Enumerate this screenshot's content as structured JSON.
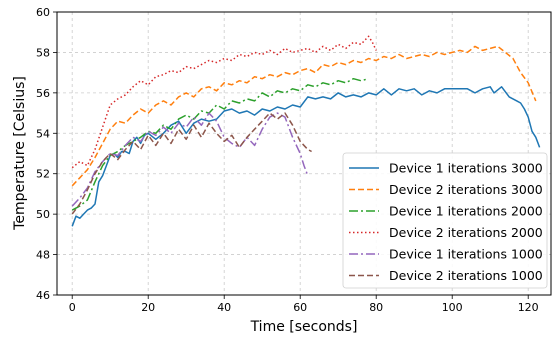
{
  "chart_data": {
    "type": "line",
    "title": "",
    "xlabel": "Time [seconds]",
    "ylabel": "Temperature [Celsius]",
    "xlim": [
      -4,
      126
    ],
    "ylim": [
      46,
      60
    ],
    "xticks": [
      0,
      20,
      40,
      60,
      80,
      100,
      120
    ],
    "yticks": [
      46,
      48,
      50,
      52,
      54,
      56,
      58,
      60
    ],
    "grid": true,
    "legend_position": "lower-right",
    "series": [
      {
        "name": "Device 1 iterations 3000",
        "color": "#1f77b4",
        "dash": "solid",
        "points": [
          [
            0,
            49.4
          ],
          [
            1,
            49.9
          ],
          [
            2,
            49.8
          ],
          [
            3,
            50.0
          ],
          [
            4,
            50.2
          ],
          [
            5,
            50.3
          ],
          [
            6,
            50.5
          ],
          [
            7,
            51.6
          ],
          [
            8,
            51.9
          ],
          [
            9,
            52.4
          ],
          [
            10,
            52.9
          ],
          [
            11,
            53.0
          ],
          [
            12,
            52.8
          ],
          [
            13,
            53.1
          ],
          [
            14,
            53.1
          ],
          [
            15,
            53.0
          ],
          [
            16,
            53.6
          ],
          [
            17,
            53.8
          ],
          [
            18,
            53.5
          ],
          [
            19,
            53.9
          ],
          [
            20,
            54.0
          ],
          [
            22,
            53.7
          ],
          [
            24,
            54.0
          ],
          [
            26,
            54.4
          ],
          [
            28,
            54.6
          ],
          [
            30,
            54.0
          ],
          [
            32,
            54.5
          ],
          [
            34,
            54.7
          ],
          [
            36,
            54.6
          ],
          [
            38,
            54.7
          ],
          [
            40,
            55.1
          ],
          [
            42,
            55.2
          ],
          [
            44,
            55.0
          ],
          [
            46,
            55.1
          ],
          [
            48,
            54.9
          ],
          [
            50,
            55.2
          ],
          [
            52,
            55.1
          ],
          [
            54,
            55.3
          ],
          [
            56,
            55.2
          ],
          [
            58,
            55.4
          ],
          [
            60,
            55.3
          ],
          [
            62,
            55.8
          ],
          [
            64,
            55.7
          ],
          [
            66,
            55.8
          ],
          [
            68,
            55.7
          ],
          [
            70,
            56.0
          ],
          [
            72,
            55.8
          ],
          [
            74,
            55.9
          ],
          [
            76,
            55.8
          ],
          [
            78,
            56.0
          ],
          [
            80,
            55.9
          ],
          [
            82,
            56.2
          ],
          [
            84,
            55.9
          ],
          [
            86,
            56.2
          ],
          [
            88,
            56.1
          ],
          [
            90,
            56.2
          ],
          [
            92,
            55.9
          ],
          [
            94,
            56.1
          ],
          [
            96,
            56.0
          ],
          [
            98,
            56.2
          ],
          [
            100,
            56.2
          ],
          [
            102,
            56.2
          ],
          [
            104,
            56.2
          ],
          [
            106,
            56.0
          ],
          [
            108,
            56.2
          ],
          [
            110,
            56.3
          ],
          [
            111,
            56.0
          ],
          [
            113,
            56.3
          ],
          [
            115,
            55.8
          ],
          [
            117,
            55.6
          ],
          [
            118,
            55.5
          ],
          [
            119,
            55.2
          ],
          [
            120,
            54.8
          ],
          [
            121,
            54.1
          ],
          [
            122,
            53.8
          ],
          [
            123,
            53.3
          ]
        ]
      },
      {
        "name": "Device 2 iterations 3000",
        "color": "#ff7f0e",
        "dash": "6 3",
        "points": [
          [
            0,
            51.4
          ],
          [
            2,
            51.8
          ],
          [
            4,
            52.2
          ],
          [
            6,
            52.8
          ],
          [
            8,
            53.5
          ],
          [
            10,
            54.2
          ],
          [
            12,
            54.6
          ],
          [
            14,
            54.5
          ],
          [
            16,
            54.9
          ],
          [
            18,
            55.2
          ],
          [
            20,
            55.0
          ],
          [
            22,
            55.4
          ],
          [
            24,
            55.6
          ],
          [
            26,
            55.4
          ],
          [
            28,
            55.8
          ],
          [
            30,
            56.0
          ],
          [
            32,
            55.8
          ],
          [
            34,
            56.2
          ],
          [
            36,
            56.3
          ],
          [
            38,
            56.1
          ],
          [
            40,
            56.5
          ],
          [
            42,
            56.4
          ],
          [
            44,
            56.6
          ],
          [
            46,
            56.5
          ],
          [
            48,
            56.8
          ],
          [
            50,
            56.7
          ],
          [
            52,
            56.9
          ],
          [
            54,
            56.8
          ],
          [
            56,
            57.0
          ],
          [
            58,
            56.9
          ],
          [
            60,
            57.1
          ],
          [
            62,
            57.2
          ],
          [
            64,
            57.0
          ],
          [
            66,
            57.4
          ],
          [
            68,
            57.3
          ],
          [
            70,
            57.5
          ],
          [
            72,
            57.4
          ],
          [
            74,
            57.6
          ],
          [
            76,
            57.5
          ],
          [
            78,
            57.7
          ],
          [
            80,
            57.6
          ],
          [
            82,
            57.8
          ],
          [
            84,
            57.7
          ],
          [
            86,
            57.9
          ],
          [
            88,
            57.7
          ],
          [
            90,
            57.8
          ],
          [
            92,
            57.9
          ],
          [
            94,
            57.8
          ],
          [
            96,
            58.0
          ],
          [
            98,
            57.9
          ],
          [
            100,
            58.0
          ],
          [
            102,
            58.1
          ],
          [
            104,
            58.0
          ],
          [
            106,
            58.3
          ],
          [
            108,
            58.1
          ],
          [
            110,
            58.2
          ],
          [
            112,
            58.3
          ],
          [
            114,
            58.0
          ],
          [
            116,
            57.7
          ],
          [
            118,
            57.0
          ],
          [
            120,
            56.5
          ],
          [
            122,
            55.6
          ]
        ]
      },
      {
        "name": "Device 1 iterations 2000",
        "color": "#2ca02c",
        "dash": "9 3 2 3",
        "points": [
          [
            0,
            50.2
          ],
          [
            2,
            50.4
          ],
          [
            4,
            50.7
          ],
          [
            6,
            51.6
          ],
          [
            8,
            52.4
          ],
          [
            10,
            52.9
          ],
          [
            12,
            53.1
          ],
          [
            14,
            53.4
          ],
          [
            16,
            53.6
          ],
          [
            18,
            53.8
          ],
          [
            20,
            54.1
          ],
          [
            22,
            54.0
          ],
          [
            24,
            54.4
          ],
          [
            26,
            54.2
          ],
          [
            28,
            54.7
          ],
          [
            30,
            54.9
          ],
          [
            32,
            54.7
          ],
          [
            34,
            55.1
          ],
          [
            36,
            55.0
          ],
          [
            38,
            55.4
          ],
          [
            40,
            55.2
          ],
          [
            42,
            55.6
          ],
          [
            44,
            55.5
          ],
          [
            46,
            55.7
          ],
          [
            48,
            55.6
          ],
          [
            50,
            56.0
          ],
          [
            52,
            55.8
          ],
          [
            54,
            56.1
          ],
          [
            56,
            56.0
          ],
          [
            58,
            56.2
          ],
          [
            60,
            56.1
          ],
          [
            62,
            56.4
          ],
          [
            64,
            56.3
          ],
          [
            66,
            56.5
          ],
          [
            68,
            56.4
          ],
          [
            70,
            56.6
          ],
          [
            72,
            56.5
          ],
          [
            74,
            56.7
          ],
          [
            76,
            56.6
          ],
          [
            78,
            56.7
          ]
        ]
      },
      {
        "name": "Device 2 iterations 2000",
        "color": "#d62728",
        "dash": "1.5 2.5",
        "points": [
          [
            0,
            52.3
          ],
          [
            2,
            52.6
          ],
          [
            4,
            52.4
          ],
          [
            6,
            53.2
          ],
          [
            8,
            54.3
          ],
          [
            10,
            55.4
          ],
          [
            12,
            55.7
          ],
          [
            14,
            55.9
          ],
          [
            16,
            56.3
          ],
          [
            18,
            56.6
          ],
          [
            20,
            56.4
          ],
          [
            22,
            56.8
          ],
          [
            24,
            56.9
          ],
          [
            26,
            57.1
          ],
          [
            28,
            57.0
          ],
          [
            30,
            57.3
          ],
          [
            32,
            57.2
          ],
          [
            34,
            57.4
          ],
          [
            36,
            57.6
          ],
          [
            38,
            57.5
          ],
          [
            40,
            57.7
          ],
          [
            42,
            57.6
          ],
          [
            44,
            57.9
          ],
          [
            46,
            57.8
          ],
          [
            48,
            58.0
          ],
          [
            50,
            57.9
          ],
          [
            52,
            58.1
          ],
          [
            54,
            57.9
          ],
          [
            56,
            58.2
          ],
          [
            58,
            58.0
          ],
          [
            60,
            58.1
          ],
          [
            62,
            58.2
          ],
          [
            64,
            58.0
          ],
          [
            66,
            58.3
          ],
          [
            68,
            58.1
          ],
          [
            70,
            58.4
          ],
          [
            72,
            58.2
          ],
          [
            74,
            58.5
          ],
          [
            76,
            58.4
          ],
          [
            78,
            58.8
          ],
          [
            79,
            58.5
          ],
          [
            80,
            58.1
          ]
        ]
      },
      {
        "name": "Device 1 iterations 1000",
        "color": "#9467bd",
        "dash": "9 3 2 3",
        "points": [
          [
            0,
            50.4
          ],
          [
            2,
            50.8
          ],
          [
            4,
            51.3
          ],
          [
            6,
            52.1
          ],
          [
            8,
            52.6
          ],
          [
            10,
            53.0
          ],
          [
            12,
            52.9
          ],
          [
            14,
            53.4
          ],
          [
            16,
            53.8
          ],
          [
            18,
            53.6
          ],
          [
            20,
            54.1
          ],
          [
            22,
            53.9
          ],
          [
            24,
            54.3
          ],
          [
            26,
            54.0
          ],
          [
            28,
            54.5
          ],
          [
            30,
            54.3
          ],
          [
            32,
            54.8
          ],
          [
            34,
            54.4
          ],
          [
            36,
            55.0
          ],
          [
            38,
            54.6
          ],
          [
            40,
            53.8
          ],
          [
            42,
            53.5
          ],
          [
            44,
            53.3
          ],
          [
            46,
            53.8
          ],
          [
            48,
            53.4
          ],
          [
            50,
            54.2
          ],
          [
            52,
            54.8
          ],
          [
            54,
            55.0
          ],
          [
            56,
            54.8
          ],
          [
            58,
            53.8
          ],
          [
            60,
            53.0
          ],
          [
            61,
            52.4
          ],
          [
            62,
            51.9
          ]
        ]
      },
      {
        "name": "Device 2 iterations 1000",
        "color": "#8c564b",
        "dash": "6 3",
        "points": [
          [
            0,
            50.0
          ],
          [
            2,
            50.5
          ],
          [
            4,
            51.2
          ],
          [
            6,
            52.0
          ],
          [
            8,
            52.6
          ],
          [
            10,
            53.0
          ],
          [
            12,
            52.7
          ],
          [
            14,
            53.2
          ],
          [
            16,
            53.6
          ],
          [
            18,
            53.2
          ],
          [
            20,
            53.9
          ],
          [
            22,
            53.4
          ],
          [
            24,
            54.0
          ],
          [
            26,
            53.5
          ],
          [
            28,
            54.2
          ],
          [
            30,
            53.7
          ],
          [
            32,
            54.4
          ],
          [
            34,
            53.8
          ],
          [
            36,
            54.5
          ],
          [
            38,
            54.0
          ],
          [
            40,
            53.6
          ],
          [
            42,
            53.9
          ],
          [
            44,
            53.3
          ],
          [
            46,
            53.8
          ],
          [
            48,
            54.2
          ],
          [
            50,
            54.6
          ],
          [
            52,
            55.0
          ],
          [
            54,
            54.7
          ],
          [
            56,
            55.0
          ],
          [
            58,
            54.4
          ],
          [
            60,
            53.6
          ],
          [
            62,
            53.2
          ],
          [
            63,
            53.1
          ]
        ]
      }
    ]
  }
}
